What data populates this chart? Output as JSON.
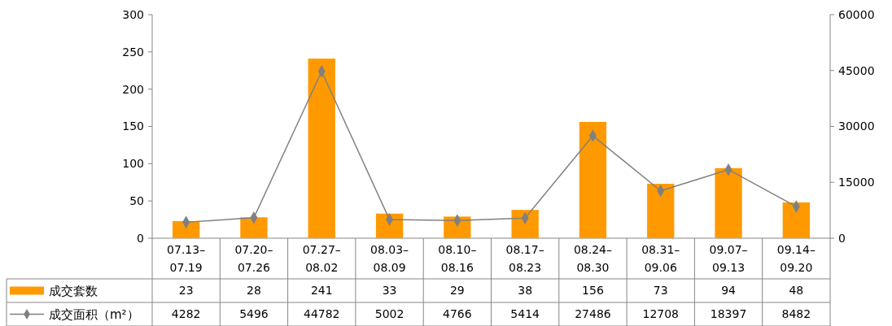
{
  "chart_data": {
    "type": "bar",
    "categories": [
      "07.13–07.19",
      "07.20–07.26",
      "07.27–08.02",
      "08.03–08.09",
      "08.10–08.16",
      "08.17–08.23",
      "08.24–08.30",
      "08.31–09.06",
      "09.07–09.13",
      "09.14–09.20"
    ],
    "series": [
      {
        "name": "成交套数",
        "color": "#ff9900",
        "values": [
          23,
          28,
          241,
          33,
          29,
          38,
          156,
          73,
          94,
          48
        ]
      },
      {
        "name": "成交面积（m²）",
        "type": "line",
        "axis": "y2",
        "color": "#808080",
        "values": [
          4282,
          5496,
          44782,
          5002,
          4766,
          5414,
          27486,
          12708,
          18397,
          8482
        ]
      }
    ],
    "ylim": [
      0,
      300
    ],
    "yticks": [
      0,
      50,
      100,
      150,
      200,
      250,
      300
    ],
    "y2lim": [
      0,
      60000
    ],
    "y2ticks": [
      0,
      15000,
      30000,
      45000,
      60000
    ],
    "marker": "diamond",
    "line_style": "solid",
    "data_labels": true,
    "legend": "bottom"
  }
}
